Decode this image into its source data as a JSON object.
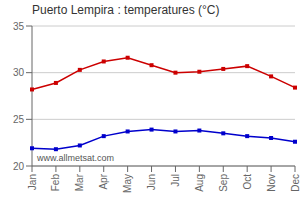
{
  "chart_data": {
    "type": "line",
    "title": "Puerto Lempira : temperatures (°C)",
    "categories": [
      "Jan",
      "Feb",
      "Mar",
      "Apr",
      "May",
      "Jun",
      "Jul",
      "Aug",
      "Sep",
      "Oct",
      "Nov",
      "Dec"
    ],
    "series": [
      {
        "color": "#cc0000",
        "values": [
          28.2,
          28.9,
          30.3,
          31.2,
          31.6,
          30.8,
          30.0,
          30.1,
          30.4,
          30.7,
          29.6,
          28.4
        ]
      },
      {
        "color": "#0000cc",
        "values": [
          21.9,
          21.8,
          22.2,
          23.2,
          23.7,
          23.9,
          23.7,
          23.8,
          23.5,
          23.2,
          23.0,
          22.6
        ]
      }
    ],
    "ylim": [
      20,
      35
    ],
    "yticks": [
      20,
      25,
      30,
      35
    ],
    "grid": "y",
    "marker": "square",
    "line_style": "solid",
    "annotations": [
      "www.allmetsat.com"
    ]
  }
}
